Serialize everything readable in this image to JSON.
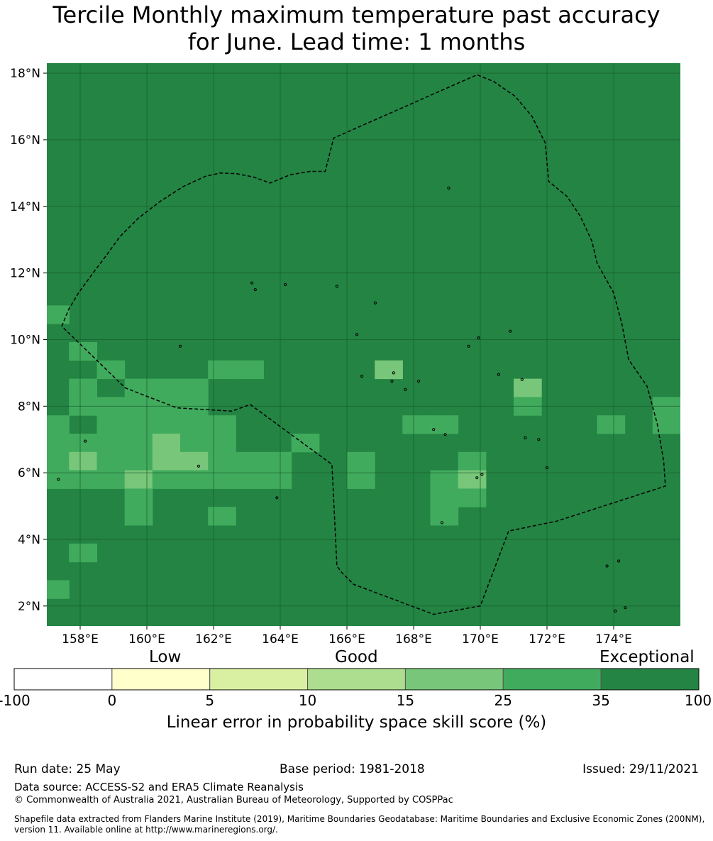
{
  "title": {
    "line1": "Tercile Monthly maximum temperature past accuracy",
    "line2": "for June. Lead time: 1 months"
  },
  "map": {
    "lon_range": [
      157.0,
      176.0
    ],
    "lat_range": [
      1.4,
      18.3
    ],
    "x_ticks": [
      {
        "value": 158,
        "label": "158°E"
      },
      {
        "value": 160,
        "label": "160°E"
      },
      {
        "value": 162,
        "label": "162°E"
      },
      {
        "value": 164,
        "label": "164°E"
      },
      {
        "value": 166,
        "label": "166°E"
      },
      {
        "value": 168,
        "label": "168°E"
      },
      {
        "value": 170,
        "label": "170°E"
      },
      {
        "value": 172,
        "label": "172°E"
      },
      {
        "value": 174,
        "label": "174°E"
      }
    ],
    "y_ticks": [
      {
        "value": 18,
        "label": "18°N"
      },
      {
        "value": 16,
        "label": "16°N"
      },
      {
        "value": 14,
        "label": "14°N"
      },
      {
        "value": 12,
        "label": "12°N"
      },
      {
        "value": 10,
        "label": "10°N"
      },
      {
        "value": 8,
        "label": "8°N"
      },
      {
        "value": 6,
        "label": "6°N"
      },
      {
        "value": 4,
        "label": "4°N"
      },
      {
        "value": 2,
        "label": "2°N"
      }
    ],
    "background_color": "#238443",
    "category_colors": {
      "c25": "#41ab5d",
      "c15": "#78c679",
      "c10": "#addd8e"
    },
    "cells": [
      {
        "lon": 157.25,
        "lat": 10.75,
        "cat": "c25"
      },
      {
        "lon": 158.083,
        "lat": 9.65,
        "cat": "c25"
      },
      {
        "lon": 158.917,
        "lat": 9.1,
        "cat": "c25"
      },
      {
        "lon": 162.25,
        "lat": 9.1,
        "cat": "c25"
      },
      {
        "lon": 163.083,
        "lat": 9.1,
        "cat": "c25"
      },
      {
        "lon": 167.25,
        "lat": 9.1,
        "cat": "c15"
      },
      {
        "lon": 158.083,
        "lat": 8.55,
        "cat": "c25"
      },
      {
        "lon": 159.75,
        "lat": 8.55,
        "cat": "c25"
      },
      {
        "lon": 160.583,
        "lat": 8.55,
        "cat": "c25"
      },
      {
        "lon": 161.417,
        "lat": 8.55,
        "cat": "c25"
      },
      {
        "lon": 171.417,
        "lat": 8.55,
        "cat": "c15"
      },
      {
        "lon": 158.083,
        "lat": 8.0,
        "cat": "c25"
      },
      {
        "lon": 158.917,
        "lat": 8.0,
        "cat": "c25"
      },
      {
        "lon": 159.75,
        "lat": 8.0,
        "cat": "c25"
      },
      {
        "lon": 160.583,
        "lat": 8.0,
        "cat": "c25"
      },
      {
        "lon": 161.417,
        "lat": 8.0,
        "cat": "c25"
      },
      {
        "lon": 171.417,
        "lat": 8.0,
        "cat": "c25"
      },
      {
        "lon": 175.583,
        "lat": 8.0,
        "cat": "c25"
      },
      {
        "lon": 157.25,
        "lat": 7.45,
        "cat": "c25"
      },
      {
        "lon": 158.917,
        "lat": 7.45,
        "cat": "c25"
      },
      {
        "lon": 159.75,
        "lat": 7.45,
        "cat": "c25"
      },
      {
        "lon": 160.583,
        "lat": 7.45,
        "cat": "c25"
      },
      {
        "lon": 161.417,
        "lat": 7.45,
        "cat": "c25"
      },
      {
        "lon": 162.25,
        "lat": 7.45,
        "cat": "c25"
      },
      {
        "lon": 168.083,
        "lat": 7.45,
        "cat": "c25"
      },
      {
        "lon": 168.917,
        "lat": 7.45,
        "cat": "c25"
      },
      {
        "lon": 173.917,
        "lat": 7.45,
        "cat": "c25"
      },
      {
        "lon": 175.583,
        "lat": 7.45,
        "cat": "c25"
      },
      {
        "lon": 157.25,
        "lat": 6.9,
        "cat": "c25"
      },
      {
        "lon": 158.083,
        "lat": 6.9,
        "cat": "c25"
      },
      {
        "lon": 158.917,
        "lat": 6.9,
        "cat": "c25"
      },
      {
        "lon": 159.75,
        "lat": 6.9,
        "cat": "c25"
      },
      {
        "lon": 160.583,
        "lat": 6.9,
        "cat": "c15"
      },
      {
        "lon": 161.417,
        "lat": 6.9,
        "cat": "c25"
      },
      {
        "lon": 162.25,
        "lat": 6.9,
        "cat": "c25"
      },
      {
        "lon": 164.75,
        "lat": 6.9,
        "cat": "c25"
      },
      {
        "lon": 157.25,
        "lat": 6.35,
        "cat": "c25"
      },
      {
        "lon": 158.083,
        "lat": 6.35,
        "cat": "c15"
      },
      {
        "lon": 158.917,
        "lat": 6.35,
        "cat": "c25"
      },
      {
        "lon": 159.75,
        "lat": 6.35,
        "cat": "c25"
      },
      {
        "lon": 160.583,
        "lat": 6.35,
        "cat": "c15"
      },
      {
        "lon": 161.417,
        "lat": 6.35,
        "cat": "c15"
      },
      {
        "lon": 162.25,
        "lat": 6.35,
        "cat": "c25"
      },
      {
        "lon": 163.083,
        "lat": 6.35,
        "cat": "c25"
      },
      {
        "lon": 163.917,
        "lat": 6.35,
        "cat": "c25"
      },
      {
        "lon": 166.417,
        "lat": 6.35,
        "cat": "c25"
      },
      {
        "lon": 169.75,
        "lat": 6.35,
        "cat": "c25"
      },
      {
        "lon": 157.25,
        "lat": 5.8,
        "cat": "c25"
      },
      {
        "lon": 158.083,
        "lat": 5.8,
        "cat": "c25"
      },
      {
        "lon": 158.917,
        "lat": 5.8,
        "cat": "c25"
      },
      {
        "lon": 159.75,
        "lat": 5.8,
        "cat": "c15"
      },
      {
        "lon": 160.583,
        "lat": 5.8,
        "cat": "c25"
      },
      {
        "lon": 161.417,
        "lat": 5.8,
        "cat": "c25"
      },
      {
        "lon": 162.25,
        "lat": 5.8,
        "cat": "c25"
      },
      {
        "lon": 163.083,
        "lat": 5.8,
        "cat": "c25"
      },
      {
        "lon": 163.917,
        "lat": 5.8,
        "cat": "c25"
      },
      {
        "lon": 166.417,
        "lat": 5.8,
        "cat": "c25"
      },
      {
        "lon": 168.917,
        "lat": 5.8,
        "cat": "c25"
      },
      {
        "lon": 169.75,
        "lat": 5.8,
        "cat": "c15"
      },
      {
        "lon": 159.75,
        "lat": 5.25,
        "cat": "c25"
      },
      {
        "lon": 168.917,
        "lat": 5.25,
        "cat": "c25"
      },
      {
        "lon": 169.75,
        "lat": 5.25,
        "cat": "c25"
      },
      {
        "lon": 159.75,
        "lat": 4.7,
        "cat": "c25"
      },
      {
        "lon": 162.25,
        "lat": 4.7,
        "cat": "c25"
      },
      {
        "lon": 168.917,
        "lat": 4.7,
        "cat": "c25"
      },
      {
        "lon": 158.083,
        "lat": 3.6,
        "cat": "c25"
      },
      {
        "lon": 157.25,
        "lat": 2.5,
        "cat": "c25"
      }
    ],
    "boundary": [
      [
        157.45,
        10.4
      ],
      [
        157.65,
        10.9
      ],
      [
        157.95,
        11.4
      ],
      [
        158.35,
        11.95
      ],
      [
        158.8,
        12.55
      ],
      [
        159.2,
        13.1
      ],
      [
        159.75,
        13.65
      ],
      [
        160.4,
        14.15
      ],
      [
        161.1,
        14.6
      ],
      [
        161.75,
        14.9
      ],
      [
        162.2,
        15.0
      ],
      [
        162.7,
        14.98
      ],
      [
        163.2,
        14.88
      ],
      [
        163.7,
        14.7
      ],
      [
        164.3,
        14.95
      ],
      [
        164.9,
        15.05
      ],
      [
        165.35,
        15.05
      ],
      [
        165.6,
        16.05
      ],
      [
        169.9,
        17.95
      ],
      [
        170.4,
        17.75
      ],
      [
        171.05,
        17.3
      ],
      [
        171.55,
        16.7
      ],
      [
        171.95,
        15.9
      ],
      [
        172.05,
        14.75
      ],
      [
        172.6,
        14.3
      ],
      [
        173.0,
        13.7
      ],
      [
        173.35,
        12.95
      ],
      [
        173.5,
        12.3
      ],
      [
        174.0,
        11.4
      ],
      [
        174.25,
        10.45
      ],
      [
        174.45,
        9.4
      ],
      [
        175.0,
        8.6
      ],
      [
        175.3,
        7.5
      ],
      [
        175.5,
        6.35
      ],
      [
        175.55,
        5.6
      ],
      [
        172.3,
        4.55
      ],
      [
        170.85,
        4.25
      ],
      [
        170.0,
        2.0
      ],
      [
        168.6,
        1.75
      ],
      [
        166.2,
        2.65
      ],
      [
        165.85,
        3.0
      ],
      [
        165.7,
        3.2
      ],
      [
        165.55,
        6.25
      ],
      [
        163.1,
        8.05
      ],
      [
        162.55,
        7.85
      ],
      [
        160.9,
        7.95
      ],
      [
        159.35,
        8.55
      ],
      [
        157.45,
        10.4
      ]
    ],
    "islands": [
      [
        158.15,
        6.95
      ],
      [
        161.55,
        6.2
      ],
      [
        163.9,
        5.25
      ],
      [
        169.05,
        14.55
      ],
      [
        166.3,
        10.15
      ],
      [
        165.7,
        11.6
      ],
      [
        163.15,
        11.7
      ],
      [
        163.25,
        11.5
      ],
      [
        166.85,
        11.1
      ],
      [
        168.15,
        8.75
      ],
      [
        168.6,
        7.3
      ],
      [
        168.95,
        7.15
      ],
      [
        169.65,
        9.8
      ],
      [
        169.95,
        10.05
      ],
      [
        170.55,
        8.95
      ],
      [
        171.35,
        7.05
      ],
      [
        171.75,
        7.0
      ],
      [
        172.0,
        6.15
      ],
      [
        169.9,
        5.85
      ],
      [
        170.05,
        5.95
      ],
      [
        168.85,
        4.5
      ],
      [
        173.8,
        3.2
      ],
      [
        174.15,
        3.35
      ],
      [
        174.05,
        1.85
      ],
      [
        174.35,
        1.95
      ],
      [
        171.25,
        8.8
      ],
      [
        161.0,
        9.8
      ],
      [
        167.75,
        8.5
      ],
      [
        166.45,
        8.9
      ],
      [
        167.4,
        9.0
      ],
      [
        167.35,
        8.75
      ],
      [
        170.9,
        10.25
      ],
      [
        164.15,
        11.65
      ],
      [
        157.35,
        5.8
      ]
    ]
  },
  "colorbar": {
    "categories": {
      "low": "Low",
      "good": "Good",
      "exceptional": "Exceptional"
    },
    "ticks": [
      "-100",
      "0",
      "5",
      "10",
      "15",
      "25",
      "35",
      "100"
    ],
    "colors": [
      "#ffffff",
      "#ffffcc",
      "#d9f0a3",
      "#addd8e",
      "#78c679",
      "#41ab5d",
      "#238443"
    ],
    "label": "Linear error in probability space skill score (%)"
  },
  "footer": {
    "run_date": "Run date: 25 May",
    "base_period": "Base period: 1981-2018",
    "issued": "Issued: 29/11/2021",
    "data_source": "Data source: ACCESS-S2 and ERA5 Climate Reanalysis",
    "copyright": "© Commonwealth of Australia 2021, Australian Bureau of Meteorology, Supported by COSPPac",
    "shapefile_line1": "Shapefile data extracted from Flanders Marine Institute (2019), Maritime Boundaries Geodatabase: Maritime Boundaries and Exclusive Economic Zones (200NM),",
    "shapefile_line2": "version 11. Available online at http://www.marineregions.org/."
  }
}
